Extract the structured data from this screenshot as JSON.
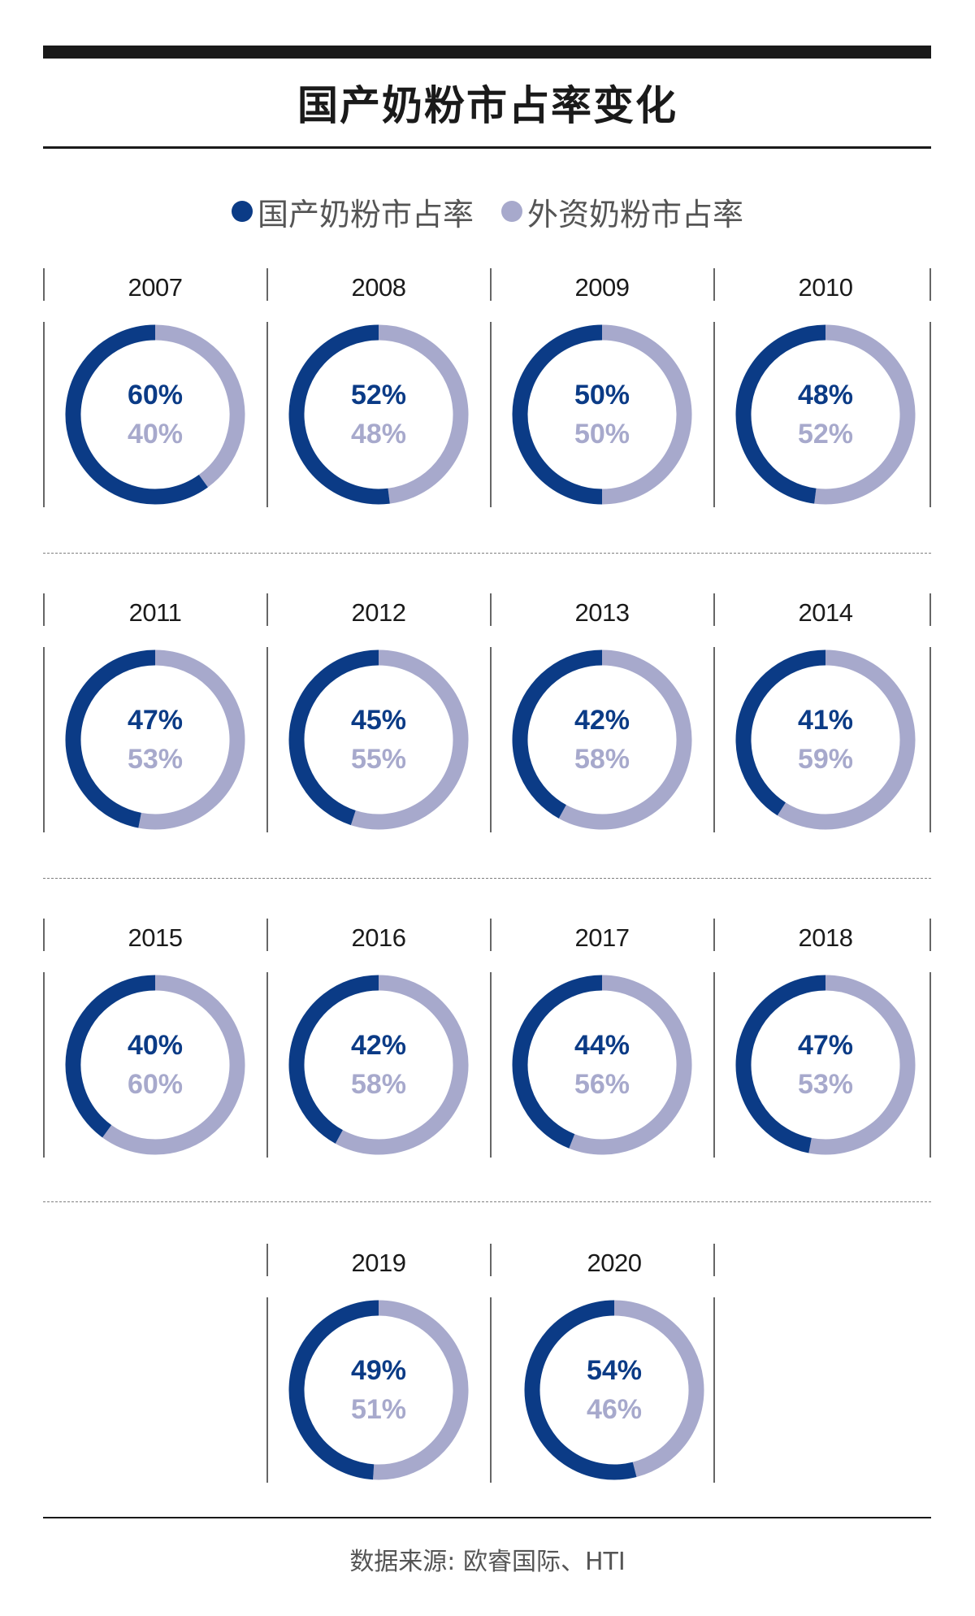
{
  "title": "国产奶粉市占率变化",
  "legend": {
    "domestic": "国产奶粉市占率",
    "foreign": "外资奶粉市占率"
  },
  "colors": {
    "domestic": "#0b3b86",
    "foreign": "#a7a9cc",
    "rule": "#1a1a1a"
  },
  "chart_data": {
    "type": "pie",
    "title": "国产奶粉市占率变化",
    "series": [
      {
        "name": "国产奶粉市占率",
        "values": [
          60,
          52,
          50,
          48,
          47,
          45,
          42,
          41,
          40,
          42,
          44,
          47,
          49,
          54
        ]
      },
      {
        "name": "外资奶粉市占率",
        "values": [
          40,
          48,
          50,
          52,
          53,
          55,
          58,
          59,
          60,
          58,
          56,
          53,
          51,
          46
        ]
      }
    ],
    "categories": [
      "2007",
      "2008",
      "2009",
      "2010",
      "2011",
      "2012",
      "2013",
      "2014",
      "2015",
      "2016",
      "2017",
      "2018",
      "2019",
      "2020"
    ],
    "labels": {
      "domestic": [
        "60%",
        "52%",
        "50%",
        "48%",
        "47%",
        "45%",
        "42%",
        "41%",
        "40%",
        "42%",
        "44%",
        "47%",
        "49%",
        "54%"
      ],
      "foreign": [
        "40%",
        "48%",
        "50%",
        "52%",
        "53%",
        "55%",
        "58%",
        "59%",
        "60%",
        "58%",
        "56%",
        "53%",
        "51%",
        "46%"
      ]
    },
    "legend_position": "top"
  },
  "source": "数据来源: 欧睿国际、HTI"
}
